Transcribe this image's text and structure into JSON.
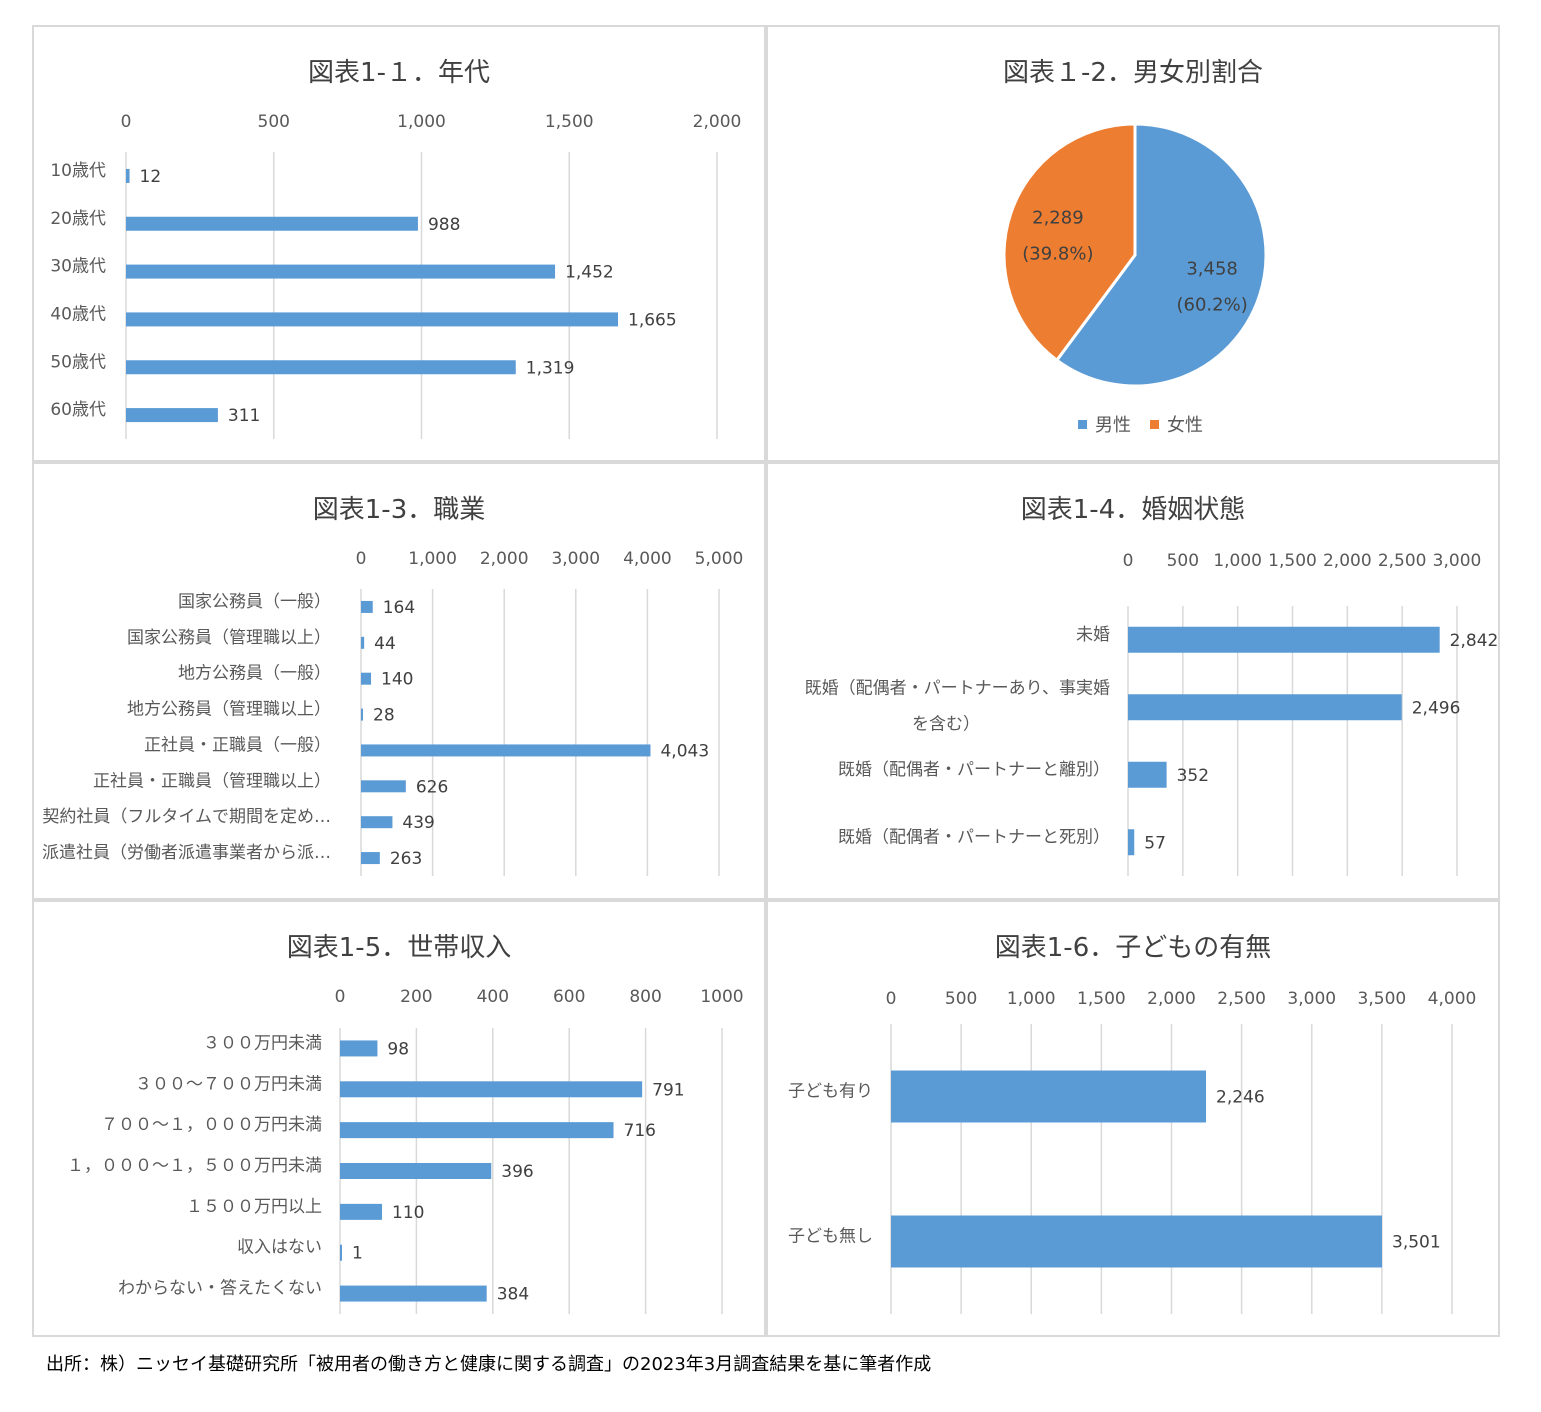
{
  "colors": {
    "bar": "#5b9bd5",
    "male": "#5b9bd5",
    "female": "#ed7d31",
    "grid": "#d9d9d9",
    "text": "#595959"
  },
  "chart_data": [
    {
      "id": "age",
      "type": "bar",
      "orientation": "horizontal",
      "title": "図表1-１．年代",
      "categories": [
        "10歳代",
        "20歳代",
        "30歳代",
        "40歳代",
        "50歳代",
        "60歳代"
      ],
      "values": [
        12,
        988,
        1452,
        1665,
        1319,
        311
      ],
      "value_labels": [
        "12",
        "988",
        "1,452",
        "1,665",
        "1,319",
        "311"
      ],
      "xlim": [
        0,
        2000
      ],
      "xticks": [
        "0",
        "500",
        "1,000",
        "1,500",
        "2,000"
      ],
      "grid": true
    },
    {
      "id": "gender",
      "type": "pie",
      "title": "図表１-2．男女別割合",
      "slices": [
        {
          "name": "男性",
          "value": 3458,
          "value_label": "3,458",
          "pct_label": "(60.2%)"
        },
        {
          "name": "女性",
          "value": 2289,
          "value_label": "2,289",
          "pct_label": "(39.8%)"
        }
      ],
      "legend": "bottom"
    },
    {
      "id": "job",
      "type": "bar",
      "orientation": "horizontal",
      "title": "図表1-3．職業",
      "categories": [
        "国家公務員（一般）",
        "国家公務員（管理職以上）",
        "地方公務員（一般）",
        "地方公務員（管理職以上）",
        "正社員・正職員（一般）",
        "正社員・正職員（管理職以上）",
        "契約社員（フルタイムで期間を定め…",
        "派遣社員（労働者派遣事業者から派…"
      ],
      "values": [
        164,
        44,
        140,
        28,
        4043,
        626,
        439,
        263
      ],
      "value_labels": [
        "164",
        "44",
        "140",
        "28",
        "4,043",
        "626",
        "439",
        "263"
      ],
      "xlim": [
        0,
        5000
      ],
      "xticks": [
        "0",
        "1,000",
        "2,000",
        "3,000",
        "4,000",
        "5,000"
      ],
      "grid": true
    },
    {
      "id": "marital",
      "type": "bar",
      "orientation": "horizontal",
      "title": "図表1-4．婚姻状態",
      "categories": [
        [
          "未婚"
        ],
        [
          "既婚（配偶者・パートナーあり、事実婚",
          "を含む）"
        ],
        [
          "既婚（配偶者・パートナーと離別）"
        ],
        [
          "既婚（配偶者・パートナーと死別）"
        ]
      ],
      "values": [
        2842,
        2496,
        352,
        57
      ],
      "value_labels": [
        "2,842",
        "2,496",
        "352",
        "57"
      ],
      "xlim": [
        0,
        3000
      ],
      "xticks": [
        "0",
        "500",
        "1,000",
        "1,500",
        "2,000",
        "2,500",
        "3,000"
      ],
      "grid": true
    },
    {
      "id": "income",
      "type": "bar",
      "orientation": "horizontal",
      "title": "図表1-5．世帯収入",
      "categories": [
        "３００万円未満",
        "３００～７００万円未満",
        "７００～１，０００万円未満",
        "１，０００～１，５００万円未満",
        "１５００万円以上",
        "収入はない",
        "わからない・答えたくない"
      ],
      "values": [
        98,
        791,
        716,
        396,
        110,
        1,
        384
      ],
      "value_labels": [
        "98",
        "791",
        "716",
        "396",
        "110",
        "1",
        "384"
      ],
      "xlim": [
        0,
        1000
      ],
      "xticks": [
        "0",
        "200",
        "400",
        "600",
        "800",
        "1000"
      ],
      "grid": true
    },
    {
      "id": "children",
      "type": "bar",
      "orientation": "horizontal",
      "title": "図表1-6．子どもの有無",
      "categories": [
        "子ども有り",
        "子ども無し"
      ],
      "values": [
        2246,
        3501
      ],
      "value_labels": [
        "2,246",
        "3,501"
      ],
      "xlim": [
        0,
        4000
      ],
      "xticks": [
        "0",
        "500",
        "1,000",
        "1,500",
        "2,000",
        "2,500",
        "3,000",
        "3,500",
        "4,000"
      ],
      "grid": true
    }
  ],
  "source_note": "出所：株）ニッセイ基礎研究所「被用者の働き方と健康に関する調査」の2023年3月調査結果を基に筆者作成"
}
